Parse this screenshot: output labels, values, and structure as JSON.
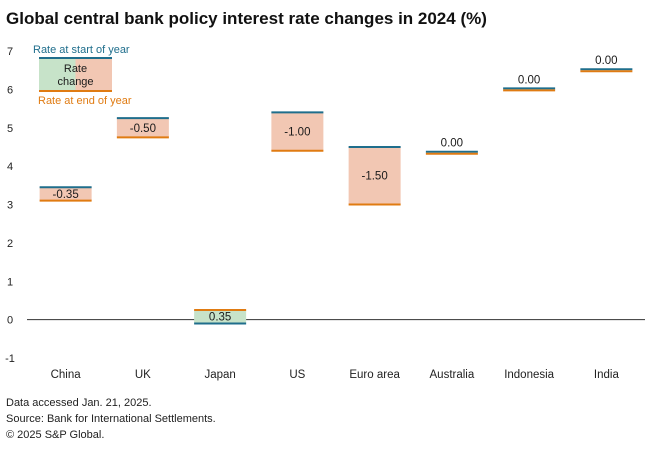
{
  "title": "Global central bank policy interest rate changes in 2024 (%)",
  "chart_data": {
    "type": "bar",
    "subtype": "floating-waterfall",
    "title": "Global central bank policy interest rate changes in 2024 (%)",
    "xlabel": "",
    "ylabel": "",
    "ylim": [
      -1,
      7
    ],
    "yticks": [
      -1,
      0,
      1,
      2,
      3,
      4,
      5,
      6,
      7
    ],
    "categories": [
      "China",
      "UK",
      "Japan",
      "US",
      "Euro area",
      "Australia",
      "Indonesia",
      "India"
    ],
    "series": [
      {
        "name": "Rate at start of year",
        "values": [
          3.45,
          5.25,
          -0.1,
          5.4,
          4.5,
          4.35,
          6.0,
          6.5
        ]
      },
      {
        "name": "Rate at end of year",
        "values": [
          3.1,
          4.75,
          0.25,
          4.4,
          3.0,
          4.35,
          6.0,
          6.5
        ]
      },
      {
        "name": "Rate change",
        "values": [
          -0.35,
          -0.5,
          0.35,
          -1.0,
          -1.5,
          0.0,
          0.0,
          0.0
        ]
      }
    ],
    "data_labels": [
      "-0.35",
      "-0.50",
      "0.35",
      "-1.00",
      "-1.50",
      "0.00",
      "0.00",
      "0.00"
    ],
    "legend": {
      "start_label": "Rate at start of year",
      "change_label": "Rate change",
      "end_label": "Rate at end of year",
      "position": "top-left"
    }
  },
  "colors": {
    "start_line": "#1f6e8c",
    "end_line": "#e07b12",
    "decrease_fill": "#f2c7b3",
    "increase_fill": "#c7e3c9",
    "axis": "#333333",
    "text": "#1a1a1a"
  },
  "footnotes": {
    "accessed": "Data accessed Jan. 21, 2025.",
    "source": "Source: Bank for International Settlements.",
    "copyright": "© 2025 S&P Global."
  }
}
